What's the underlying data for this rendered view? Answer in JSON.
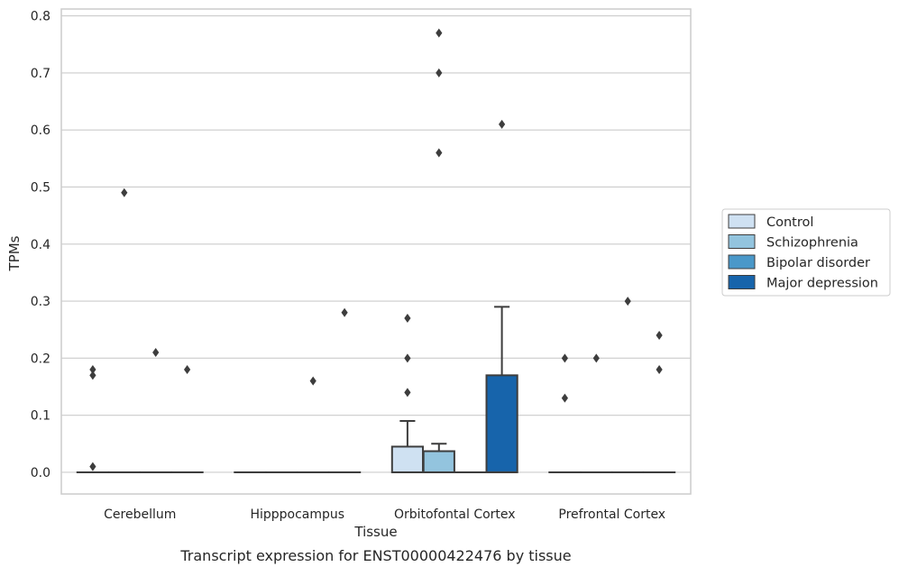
{
  "caption": "Transcript expression for ENST00000422476 by tissue",
  "chart_data": {
    "type": "box",
    "title": "",
    "xlabel": "Tissue",
    "ylabel": "TPMs",
    "ylim": [
      -0.038,
      0.812
    ],
    "yticks": [
      0.0,
      0.1,
      0.2,
      0.3,
      0.4,
      0.5,
      0.6,
      0.7,
      0.8
    ],
    "ytick_labels": [
      "0.0",
      "0.1",
      "0.2",
      "0.3",
      "0.4",
      "0.5",
      "0.6",
      "0.7",
      "0.8"
    ],
    "grid": "horizontal",
    "legend_position": "right",
    "categories": [
      "Cerebellum",
      "Hipppocampus",
      "Orbitofontal Cortex",
      "Prefrontal Cortex"
    ],
    "series": [
      {
        "name": "Control",
        "color": "#cfe1f2",
        "boxes": [
          {
            "q1": 0,
            "median": 0,
            "q3": 0,
            "whisker_low": 0,
            "whisker_high": 0,
            "outliers": [
              0.18,
              0.17,
              0.01
            ]
          },
          {
            "q1": 0,
            "median": 0,
            "q3": 0,
            "whisker_low": 0,
            "whisker_high": 0,
            "outliers": []
          },
          {
            "q1": 0,
            "median": 0,
            "q3": 0.045,
            "whisker_low": 0,
            "whisker_high": 0.09,
            "outliers": [
              0.27,
              0.2,
              0.14
            ]
          },
          {
            "q1": 0,
            "median": 0,
            "q3": 0,
            "whisker_low": 0,
            "whisker_high": 0,
            "outliers": [
              0.2,
              0.13
            ]
          }
        ]
      },
      {
        "name": "Schizophrenia",
        "color": "#93c4de",
        "boxes": [
          {
            "q1": 0,
            "median": 0,
            "q3": 0,
            "whisker_low": 0,
            "whisker_high": 0,
            "outliers": [
              0.49
            ]
          },
          {
            "q1": 0,
            "median": 0,
            "q3": 0,
            "whisker_low": 0,
            "whisker_high": 0,
            "outliers": []
          },
          {
            "q1": 0,
            "median": 0,
            "q3": 0.037,
            "whisker_low": 0,
            "whisker_high": 0.05,
            "outliers": [
              0.77,
              0.7,
              0.56
            ]
          },
          {
            "q1": 0,
            "median": 0,
            "q3": 0,
            "whisker_low": 0,
            "whisker_high": 0,
            "outliers": [
              0.2
            ]
          }
        ]
      },
      {
        "name": "Bipolar disorder",
        "color": "#4a98c9",
        "boxes": [
          {
            "q1": 0,
            "median": 0,
            "q3": 0,
            "whisker_low": 0,
            "whisker_high": 0,
            "outliers": [
              0.21
            ]
          },
          {
            "q1": 0,
            "median": 0,
            "q3": 0,
            "whisker_low": 0,
            "whisker_high": 0,
            "outliers": [
              0.16
            ]
          },
          {
            "q1": 0,
            "median": 0,
            "q3": 0,
            "whisker_low": 0,
            "whisker_high": 0,
            "outliers": []
          },
          {
            "q1": 0,
            "median": 0,
            "q3": 0,
            "whisker_low": 0,
            "whisker_high": 0,
            "outliers": [
              0.3
            ]
          }
        ]
      },
      {
        "name": "Major depression",
        "color": "#1764ab",
        "boxes": [
          {
            "q1": 0,
            "median": 0,
            "q3": 0,
            "whisker_low": 0,
            "whisker_high": 0,
            "outliers": [
              0.18
            ]
          },
          {
            "q1": 0,
            "median": 0,
            "q3": 0,
            "whisker_low": 0,
            "whisker_high": 0,
            "outliers": [
              0.28
            ]
          },
          {
            "q1": 0,
            "median": 0,
            "q3": 0.17,
            "whisker_low": 0,
            "whisker_high": 0.29,
            "outliers": [
              0.61
            ]
          },
          {
            "q1": 0,
            "median": 0,
            "q3": 0,
            "whisker_low": 0,
            "whisker_high": 0,
            "outliers": [
              0.24,
              0.18
            ]
          }
        ]
      }
    ]
  }
}
